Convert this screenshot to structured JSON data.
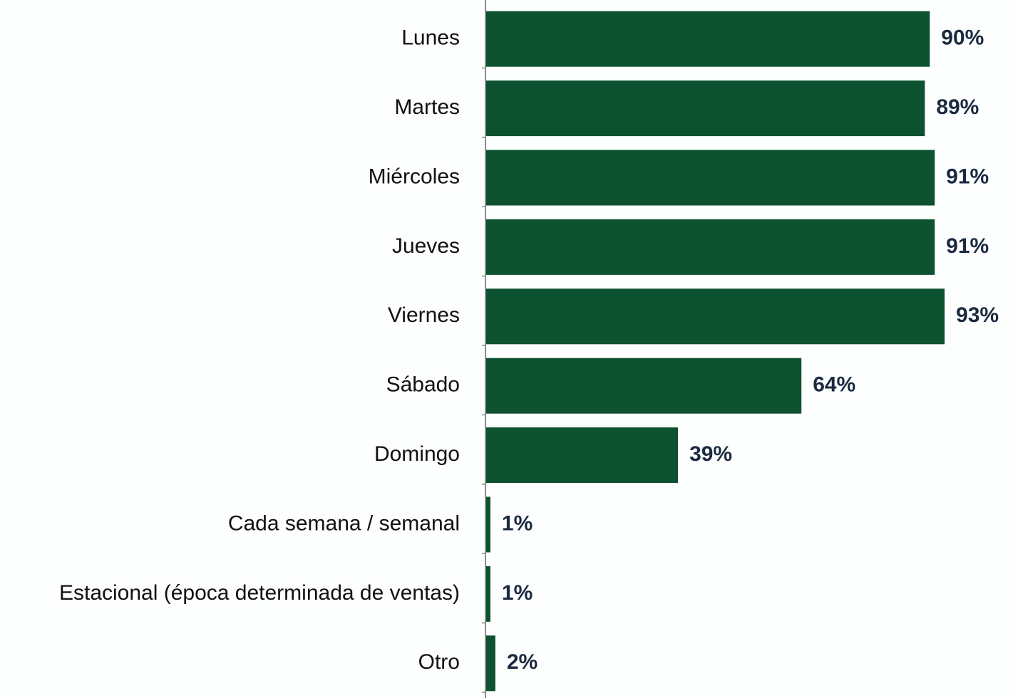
{
  "chart_data": {
    "type": "bar",
    "orientation": "horizontal",
    "categories": [
      "Lunes",
      "Martes",
      "Miércoles",
      "Jueves",
      "Viernes",
      "Sábado",
      "Domingo",
      "Cada semana / semanal",
      "Estacional (época determinada de ventas)",
      "Otro"
    ],
    "values": [
      90,
      89,
      91,
      91,
      93,
      64,
      39,
      1,
      1,
      2
    ],
    "value_labels": [
      "90%",
      "89%",
      "91%",
      "91%",
      "93%",
      "64%",
      "39%",
      "1%",
      "1%",
      "2%"
    ],
    "color": "#0d5230",
    "xlim": [
      0,
      100
    ]
  }
}
